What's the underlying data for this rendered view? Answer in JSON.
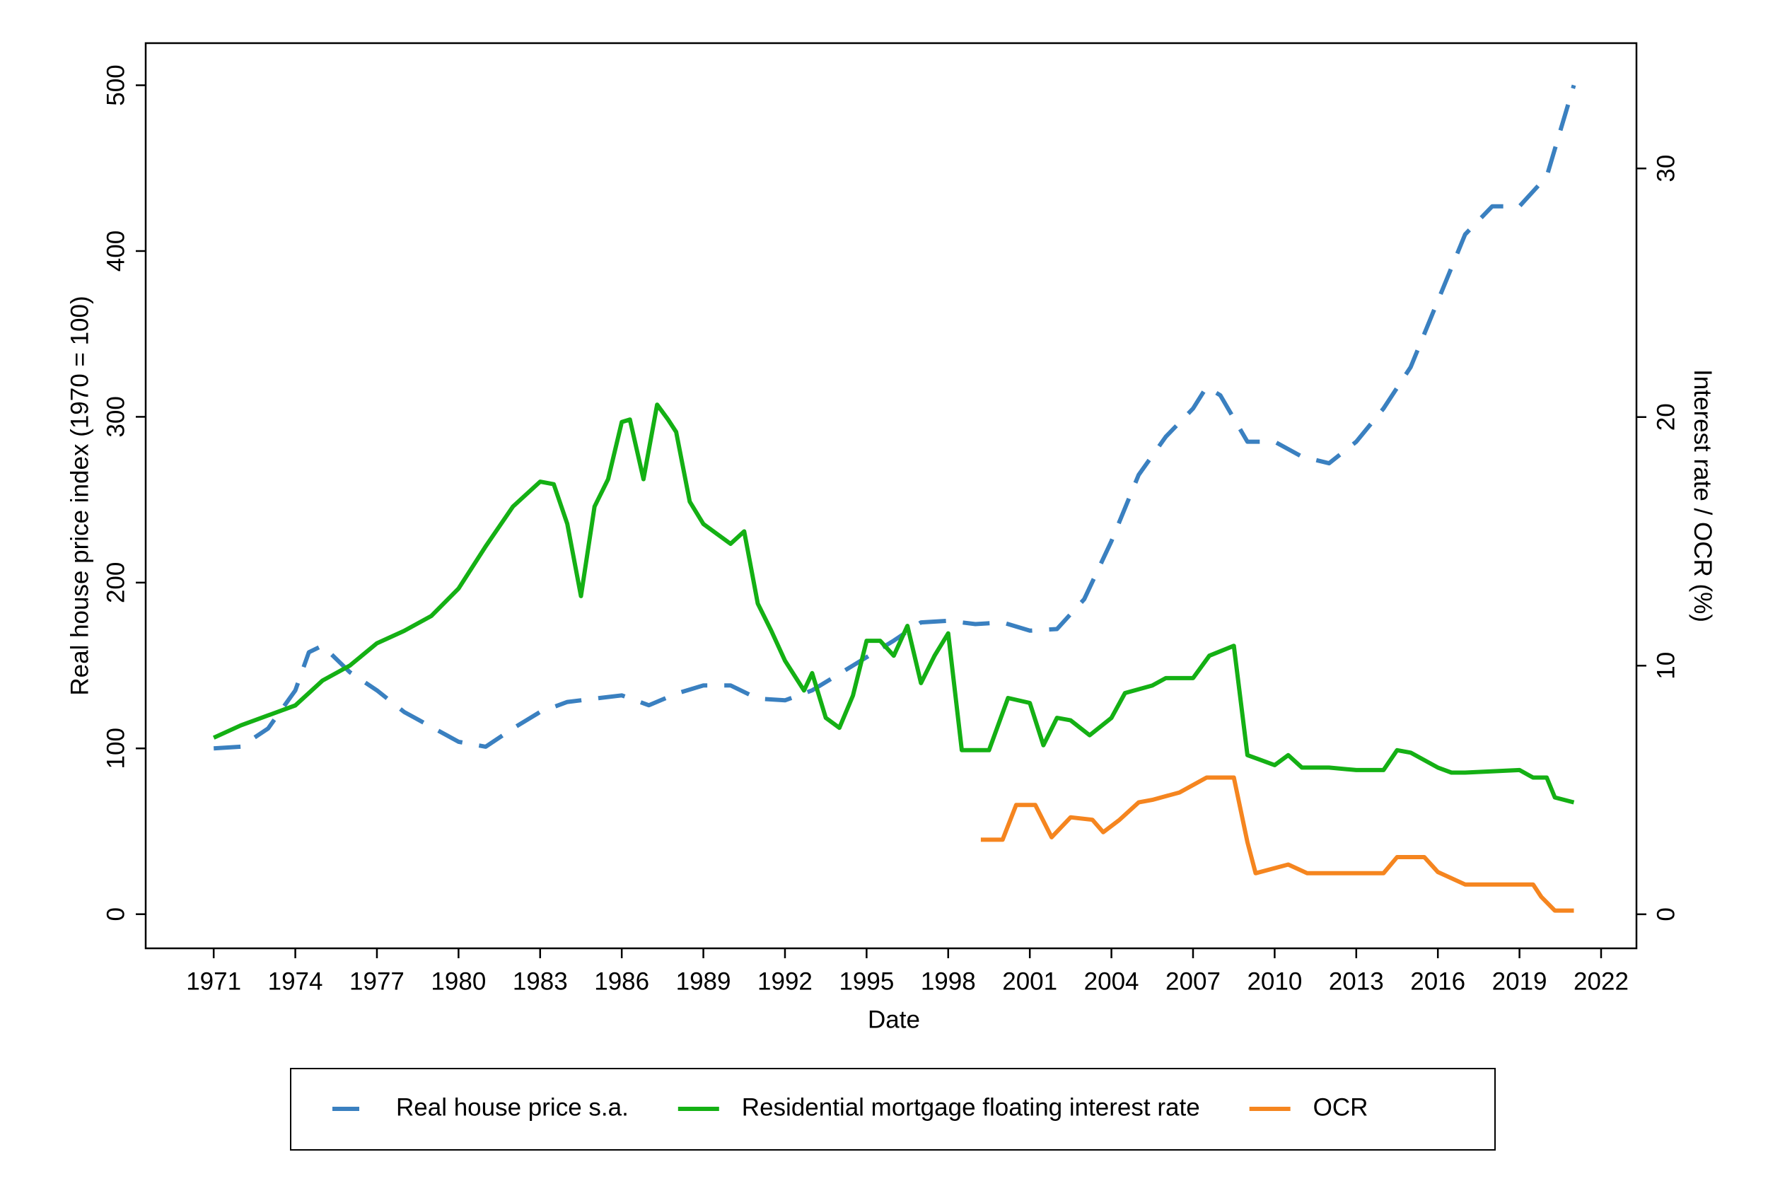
{
  "chart_data": {
    "type": "line",
    "xlabel": "Date",
    "ylabel": "Real house price index (1970 = 100)",
    "y2label": "Interest rate / OCR (%)",
    "xlim": [
      1968.5,
      2023.3
    ],
    "xticks": [
      1971,
      1974,
      1977,
      1980,
      1983,
      1986,
      1989,
      1992,
      1995,
      1998,
      2001,
      2004,
      2007,
      2010,
      2013,
      2016,
      2019,
      2022
    ],
    "ylim": [
      -20.6,
      525.4
    ],
    "yticks": [
      0,
      100,
      200,
      300,
      400,
      500
    ],
    "y2lim": [
      -1.37,
      35.04
    ],
    "y2ticks": [
      0,
      10,
      20,
      30
    ],
    "legend": "bottom",
    "series": [
      {
        "name": "Real house price s.a.",
        "color": "#3a80c0",
        "dashed": true,
        "axis": "y",
        "x": [
          1971,
          1972,
          1973,
          1974,
          1974.5,
          1975,
          1976,
          1977,
          1978,
          1979,
          1980,
          1981,
          1982,
          1983,
          1984,
          1985,
          1986,
          1987,
          1988,
          1989,
          1990,
          1991,
          1992,
          1993,
          1994,
          1995,
          1996,
          1997,
          1998,
          1999,
          2000,
          2001,
          2002,
          2003,
          2004,
          2005,
          2006,
          2007,
          2007.5,
          2008,
          2009,
          2010,
          2011,
          2012,
          2013,
          2014,
          2015,
          2016,
          2017,
          2018,
          2019,
          2020,
          2021
        ],
        "values": [
          100,
          101,
          112,
          135,
          158,
          162,
          146,
          135,
          122,
          113,
          104,
          101,
          112,
          122,
          128,
          130,
          132,
          126,
          133,
          138,
          138,
          130,
          129,
          135,
          145,
          155,
          165,
          176,
          177,
          175,
          176,
          171,
          172,
          190,
          225,
          265,
          288,
          305,
          318,
          313,
          285,
          285,
          276,
          272,
          285,
          305,
          330,
          370,
          410,
          427,
          427,
          445,
          500
        ]
      },
      {
        "name": "Residential mortgage floating interest rate",
        "color": "#14b014",
        "dashed": false,
        "axis": "y2",
        "x": [
          1971,
          1972,
          1973,
          1974,
          1975,
          1976,
          1977,
          1978,
          1979,
          1980,
          1981,
          1982,
          1983,
          1983.5,
          1984,
          1984.5,
          1985,
          1985.5,
          1986,
          1986.3,
          1986.8,
          1987.3,
          1987.7,
          1988,
          1988.5,
          1989,
          1990,
          1990.5,
          1991,
          1991.5,
          1992,
          1992.7,
          1993,
          1993.5,
          1994,
          1994.5,
          1995,
          1995.5,
          1996,
          1996.5,
          1997,
          1997.5,
          1998,
          1998.5,
          1999.5,
          2000.2,
          2001,
          2001.5,
          2002,
          2002.5,
          2003.2,
          2004,
          2004.5,
          2005.5,
          2006,
          2007,
          2007.6,
          2008.5,
          2009,
          2010,
          2010.5,
          2011,
          2012,
          2013,
          2014,
          2014.5,
          2015,
          2016,
          2016.5,
          2017,
          2019,
          2019.5,
          2020,
          2020.3,
          2021
        ],
        "values": [
          7.1,
          7.6,
          8.0,
          8.4,
          9.4,
          10.0,
          10.9,
          11.4,
          12.0,
          13.1,
          14.8,
          16.4,
          17.4,
          17.3,
          15.7,
          12.8,
          16.4,
          17.5,
          19.8,
          19.9,
          17.5,
          20.5,
          19.9,
          19.4,
          16.6,
          15.7,
          14.9,
          15.4,
          12.5,
          11.4,
          10.2,
          9.0,
          9.7,
          7.9,
          7.5,
          8.8,
          11.0,
          11.0,
          10.4,
          11.6,
          9.3,
          10.4,
          11.3,
          6.6,
          6.6,
          8.7,
          8.5,
          6.8,
          7.9,
          7.8,
          7.2,
          7.9,
          8.9,
          9.2,
          9.5,
          9.5,
          10.4,
          10.8,
          6.4,
          6.0,
          6.4,
          5.9,
          5.9,
          5.8,
          5.8,
          6.6,
          6.5,
          5.9,
          5.7,
          5.7,
          5.8,
          5.5,
          5.5,
          4.7,
          4.5
        ]
      },
      {
        "name": "OCR",
        "color": "#f5851f",
        "dashed": false,
        "axis": "y2",
        "x": [
          1999.2,
          2000,
          2000.5,
          2001.2,
          2001.8,
          2002.5,
          2003.3,
          2003.7,
          2004.3,
          2005,
          2005.5,
          2006.5,
          2007.5,
          2008.5,
          2009,
          2009.3,
          2010.5,
          2011.2,
          2014,
          2014.5,
          2015.5,
          2016,
          2017,
          2019.5,
          2019.8,
          2020.3,
          2021
        ],
        "values": [
          3.0,
          3.0,
          4.4,
          4.4,
          3.1,
          3.9,
          3.8,
          3.3,
          3.8,
          4.5,
          4.6,
          4.9,
          5.5,
          5.5,
          2.9,
          1.65,
          2.0,
          1.65,
          1.65,
          2.3,
          2.3,
          1.7,
          1.2,
          1.2,
          0.7,
          0.15,
          0.15
        ]
      }
    ]
  }
}
